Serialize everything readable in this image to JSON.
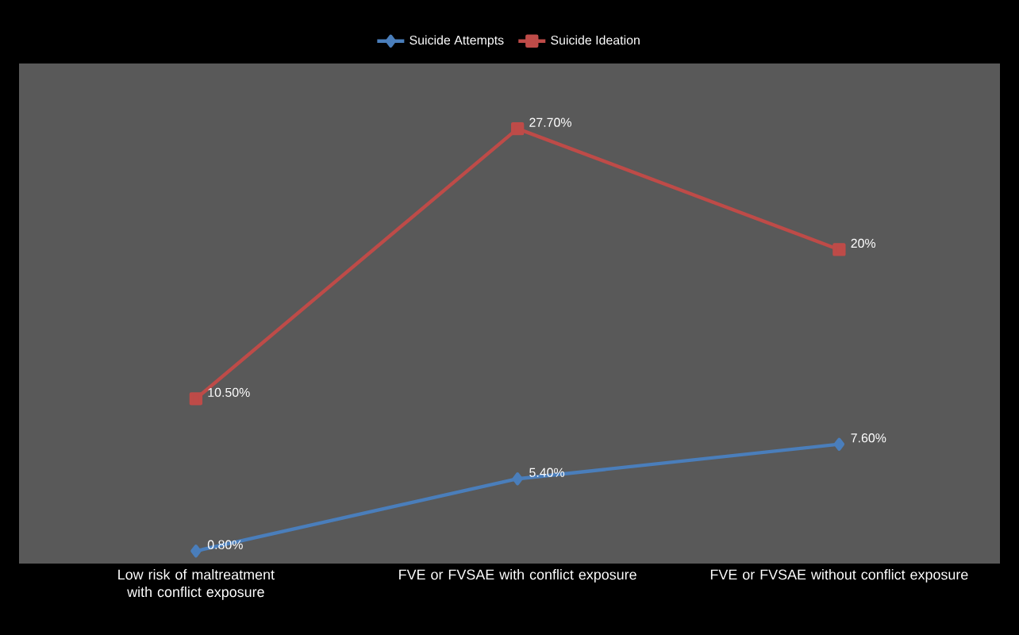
{
  "chart_data": {
    "type": "line",
    "categories": [
      "Low risk of maltreatment with conflict exposure",
      "FVE or FVSAE with conflict exposure",
      "FVE or FVSAE without conflict exposure"
    ],
    "series": [
      {
        "name": "Suicide Attempts",
        "color": "#4a7ebb",
        "marker": "diamond",
        "values": [
          0.8,
          5.4,
          7.6
        ],
        "value_labels": [
          "0.80%",
          "5.40%",
          "7.60%"
        ]
      },
      {
        "name": "Suicide Ideation",
        "color": "#be4b48",
        "marker": "square",
        "values": [
          10.5,
          27.7,
          20
        ],
        "value_labels": [
          "10.50%",
          "27.70%",
          "20%"
        ]
      }
    ],
    "legend": "top",
    "grid": false
  }
}
